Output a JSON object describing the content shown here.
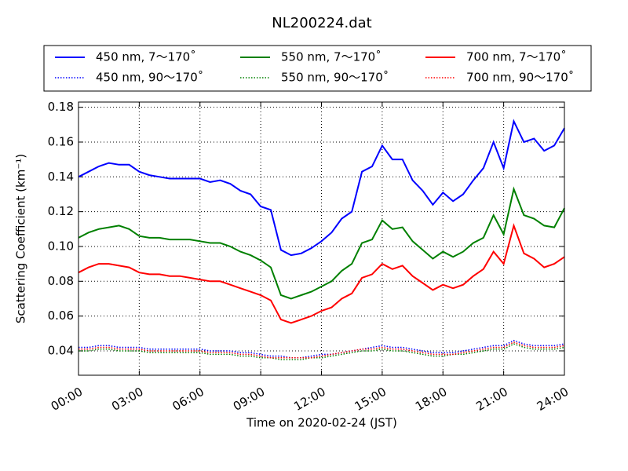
{
  "chart_data": {
    "type": "line",
    "title": "NL200224.dat",
    "xlabel": "Time on 2020-02-24 (JST)",
    "ylabel": "Scattering Coefficient (km⁻¹)",
    "grid": true,
    "legend": "top",
    "x": [
      0,
      0.5,
      1,
      1.5,
      2,
      2.5,
      3,
      3.5,
      4,
      4.5,
      5,
      5.5,
      6,
      6.5,
      7,
      7.5,
      8,
      8.5,
      9,
      9.5,
      10,
      10.5,
      11,
      11.5,
      12,
      12.5,
      13,
      13.5,
      14,
      14.5,
      15,
      15.5,
      16,
      16.5,
      17,
      17.5,
      18,
      18.5,
      19,
      19.5,
      20,
      20.5,
      21,
      21.5,
      22,
      22.5,
      23,
      23.5,
      24
    ],
    "xlim": [
      0,
      24
    ],
    "xticks": [
      {
        "value": 0,
        "label": "00:00"
      },
      {
        "value": 3,
        "label": "03:00"
      },
      {
        "value": 6,
        "label": "06:00"
      },
      {
        "value": 9,
        "label": "09:00"
      },
      {
        "value": 12,
        "label": "12:00"
      },
      {
        "value": 15,
        "label": "15:00"
      },
      {
        "value": 18,
        "label": "18:00"
      },
      {
        "value": 21,
        "label": "21:00"
      },
      {
        "value": 24,
        "label": "24:00"
      }
    ],
    "ylim": [
      0.026,
      0.183
    ],
    "yticks": [
      0.04,
      0.06,
      0.08,
      {
        "value": 0.1,
        "label": "0.10"
      },
      0.12,
      0.14,
      0.16,
      0.18
    ],
    "series": [
      {
        "name": "450 nm, 7～170˚",
        "color": "#0000ff",
        "linestyle": "solid",
        "values": [
          0.14,
          0.143,
          0.146,
          0.148,
          0.147,
          0.147,
          0.143,
          0.141,
          0.14,
          0.139,
          0.139,
          0.139,
          0.139,
          0.137,
          0.138,
          0.136,
          0.132,
          0.13,
          0.123,
          0.121,
          0.098,
          0.095,
          0.096,
          0.099,
          0.103,
          0.108,
          0.116,
          0.12,
          0.143,
          0.146,
          0.158,
          0.15,
          0.15,
          0.138,
          0.132,
          0.124,
          0.131,
          0.126,
          0.13,
          0.138,
          0.145,
          0.16,
          0.145,
          0.172,
          0.16,
          0.162,
          0.155,
          0.158,
          0.168
        ]
      },
      {
        "name": "450 nm, 90～170˚",
        "color": "#0000ff",
        "linestyle": "dotted",
        "values": [
          0.042,
          0.042,
          0.043,
          0.043,
          0.042,
          0.042,
          0.042,
          0.041,
          0.041,
          0.041,
          0.041,
          0.041,
          0.041,
          0.04,
          0.04,
          0.04,
          0.039,
          0.039,
          0.038,
          0.037,
          0.037,
          0.036,
          0.036,
          0.037,
          0.038,
          0.038,
          0.039,
          0.04,
          0.041,
          0.042,
          0.043,
          0.042,
          0.042,
          0.041,
          0.04,
          0.039,
          0.039,
          0.039,
          0.04,
          0.041,
          0.042,
          0.043,
          0.043,
          0.046,
          0.044,
          0.043,
          0.043,
          0.043,
          0.044
        ]
      },
      {
        "name": "550 nm, 7～170˚",
        "color": "#008000",
        "linestyle": "solid",
        "values": [
          0.105,
          0.108,
          0.11,
          0.111,
          0.112,
          0.11,
          0.106,
          0.105,
          0.105,
          0.104,
          0.104,
          0.104,
          0.103,
          0.102,
          0.102,
          0.1,
          0.097,
          0.095,
          0.092,
          0.088,
          0.072,
          0.07,
          0.072,
          0.074,
          0.077,
          0.08,
          0.086,
          0.09,
          0.102,
          0.104,
          0.115,
          0.11,
          0.111,
          0.103,
          0.098,
          0.093,
          0.097,
          0.094,
          0.097,
          0.102,
          0.105,
          0.118,
          0.107,
          0.133,
          0.118,
          0.116,
          0.112,
          0.111,
          0.122
        ]
      },
      {
        "name": "550 nm, 90～170˚",
        "color": "#008000",
        "linestyle": "dotted",
        "values": [
          0.04,
          0.04,
          0.041,
          0.041,
          0.04,
          0.04,
          0.04,
          0.039,
          0.039,
          0.039,
          0.039,
          0.039,
          0.039,
          0.038,
          0.038,
          0.038,
          0.037,
          0.037,
          0.036,
          0.036,
          0.035,
          0.035,
          0.035,
          0.036,
          0.036,
          0.037,
          0.038,
          0.039,
          0.04,
          0.04,
          0.041,
          0.04,
          0.04,
          0.039,
          0.038,
          0.037,
          0.037,
          0.038,
          0.038,
          0.039,
          0.04,
          0.041,
          0.041,
          0.044,
          0.042,
          0.041,
          0.041,
          0.041,
          0.042
        ]
      },
      {
        "name": "700 nm, 7～170˚",
        "color": "#ff0000",
        "linestyle": "solid",
        "values": [
          0.085,
          0.088,
          0.09,
          0.09,
          0.089,
          0.088,
          0.085,
          0.084,
          0.084,
          0.083,
          0.083,
          0.082,
          0.081,
          0.08,
          0.08,
          0.078,
          0.076,
          0.074,
          0.072,
          0.069,
          0.058,
          0.056,
          0.058,
          0.06,
          0.063,
          0.065,
          0.07,
          0.073,
          0.082,
          0.084,
          0.09,
          0.087,
          0.089,
          0.083,
          0.079,
          0.075,
          0.078,
          0.076,
          0.078,
          0.083,
          0.087,
          0.097,
          0.09,
          0.112,
          0.096,
          0.093,
          0.088,
          0.09,
          0.094
        ]
      },
      {
        "name": "700 nm, 90～170˚",
        "color": "#ff0000",
        "linestyle": "dotted",
        "values": [
          0.041,
          0.041,
          0.042,
          0.042,
          0.041,
          0.041,
          0.041,
          0.04,
          0.04,
          0.04,
          0.04,
          0.04,
          0.04,
          0.039,
          0.039,
          0.039,
          0.038,
          0.038,
          0.037,
          0.036,
          0.036,
          0.036,
          0.036,
          0.036,
          0.037,
          0.038,
          0.039,
          0.04,
          0.041,
          0.041,
          0.042,
          0.041,
          0.041,
          0.04,
          0.039,
          0.038,
          0.038,
          0.038,
          0.039,
          0.04,
          0.041,
          0.042,
          0.042,
          0.045,
          0.043,
          0.042,
          0.042,
          0.042,
          0.043
        ]
      }
    ]
  }
}
